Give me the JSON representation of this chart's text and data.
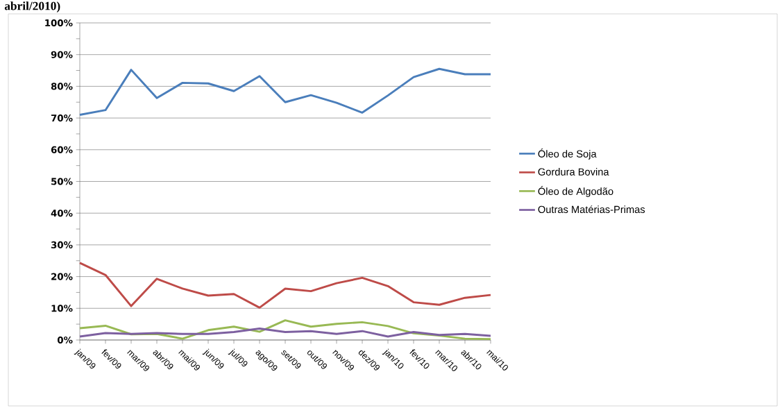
{
  "chart_data": {
    "type": "line",
    "title": "abril/2010)",
    "categories": [
      "jan/09",
      "fev/09",
      "mar/09",
      "abr/09",
      "mai/09",
      "jun/09",
      "jul/09",
      "ago/09",
      "set/09",
      "out/09",
      "nov/09",
      "dez/09",
      "jan/10",
      "fev/10",
      "mar/10",
      "abr/10",
      "mai/10"
    ],
    "series": [
      {
        "name": "Óleo de Soja",
        "color": "#4a7ebb",
        "values": [
          71,
          72.5,
          85.2,
          76.3,
          81.1,
          80.9,
          78.5,
          83.2,
          75,
          77.2,
          74.8,
          71.7,
          77.1,
          82.9,
          85.5,
          83.8,
          83.8
        ]
      },
      {
        "name": "Gordura Bovina",
        "color": "#be4b48",
        "values": [
          24.3,
          20.5,
          10.7,
          19.3,
          16.2,
          14,
          14.5,
          10.2,
          16.2,
          15.4,
          17.9,
          19.6,
          17,
          11.9,
          11.1,
          13.3,
          14.2
        ]
      },
      {
        "name": "Óleo de Algodão",
        "color": "#98b954",
        "values": [
          3.7,
          4.5,
          1.8,
          1.9,
          0.4,
          3.1,
          4.2,
          2.6,
          6.2,
          4.2,
          5.1,
          5.6,
          4.4,
          2.1,
          1.4,
          0.4,
          0.3
        ]
      },
      {
        "name": "Outras Matérias-Primas",
        "color": "#7d60a0",
        "values": [
          1.1,
          2.2,
          1.9,
          2.2,
          1.9,
          1.9,
          2.5,
          3.6,
          2.5,
          2.8,
          1.9,
          2.8,
          1.1,
          2.5,
          1.6,
          1.9,
          1.3
        ]
      }
    ],
    "ylim": [
      0,
      100
    ],
    "yticks": [
      {
        "value": 0,
        "label": "0%"
      },
      {
        "value": 5,
        "label": null
      },
      {
        "value": 10,
        "label": "10%"
      },
      {
        "value": 15,
        "label": null
      },
      {
        "value": 20,
        "label": "20%"
      },
      {
        "value": 25,
        "label": null
      },
      {
        "value": 30,
        "label": "30%"
      },
      {
        "value": 35,
        "label": null
      },
      {
        "value": 40,
        "label": "40%"
      },
      {
        "value": 45,
        "label": null
      },
      {
        "value": 50,
        "label": "50%"
      },
      {
        "value": 55,
        "label": null
      },
      {
        "value": 60,
        "label": "60%"
      },
      {
        "value": 65,
        "label": null
      },
      {
        "value": 70,
        "label": "70%"
      },
      {
        "value": 75,
        "label": null
      },
      {
        "value": 80,
        "label": "80%"
      },
      {
        "value": 85,
        "label": null
      },
      {
        "value": 90,
        "label": "90%"
      },
      {
        "value": 95,
        "label": null
      },
      {
        "value": 100,
        "label": "100%"
      }
    ],
    "grid": "y",
    "legend": "right",
    "marker": "none",
    "line_style": "solid"
  }
}
